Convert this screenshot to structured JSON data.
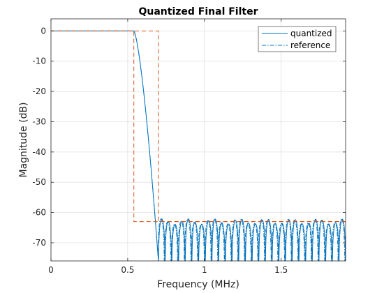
{
  "chart_data": {
    "type": "line",
    "title": "Quantized Final Filter",
    "xlabel": "Frequency (MHz)",
    "ylabel": "Magnitude (dB)",
    "xlim": [
      0,
      1.92
    ],
    "ylim": [
      -76,
      4
    ],
    "xticks": [
      0,
      0.5,
      1,
      1.5
    ],
    "yticks": [
      0,
      -10,
      -20,
      -30,
      -40,
      -50,
      -60,
      -70
    ],
    "grid": true,
    "legend_position": "top-right",
    "series": [
      {
        "name": "quantized",
        "style": "solid",
        "color": "#0072BD",
        "passband_edge_mhz": 0.54,
        "stopband_edge_mhz": 0.7,
        "stopband_lobe_peak_db": -63,
        "stopband_lobe_count": 28
      },
      {
        "name": "reference",
        "style": "dash-dot",
        "color": "#0072BD"
      },
      {
        "name": "",
        "style": "dashed",
        "color": "#D95319",
        "x": [
          0,
          0.54,
          0.54,
          0.7,
          0.7,
          1.92
        ],
        "y": [
          0,
          0,
          -63,
          -63,
          -63,
          -63
        ],
        "upper_x": [
          0,
          0.7,
          0.7,
          1.92
        ],
        "upper_y": [
          0,
          0,
          -63,
          -63
        ]
      }
    ]
  }
}
